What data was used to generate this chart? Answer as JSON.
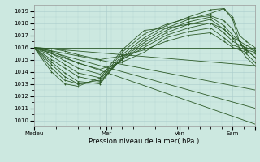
{
  "xlabel": "Pression niveau de la mer( hPa )",
  "bg_color": "#cce8e0",
  "grid_color": "#aacccc",
  "line_color": "#2d5a27",
  "xlim": [
    0,
    100
  ],
  "ylim": [
    1009.5,
    1019.5
  ],
  "yticks": [
    1010,
    1011,
    1012,
    1013,
    1014,
    1015,
    1016,
    1017,
    1018,
    1019
  ],
  "xtick_positions": [
    0,
    33,
    66,
    90,
    100
  ],
  "xtick_labels": [
    "Madeu",
    "Mer",
    "Ven",
    "Sam",
    ""
  ],
  "fan_lines": [
    {
      "x0": 0,
      "y0": 1016.0,
      "x1": 100,
      "y1": 1016.0
    },
    {
      "x0": 0,
      "y0": 1016.0,
      "x1": 100,
      "y1": 1014.5
    },
    {
      "x0": 0,
      "y0": 1016.0,
      "x1": 100,
      "y1": 1012.5
    },
    {
      "x0": 0,
      "y0": 1016.0,
      "x1": 100,
      "y1": 1011.0
    },
    {
      "x0": 0,
      "y0": 1016.0,
      "x1": 100,
      "y1": 1009.7
    }
  ],
  "curves": [
    {
      "x": [
        0,
        8,
        14,
        20,
        30,
        40,
        50,
        60,
        70,
        80,
        86,
        90,
        93,
        96,
        100
      ],
      "y": [
        1016.0,
        1015.9,
        1015.7,
        1015.4,
        1015.0,
        1015.3,
        1015.8,
        1016.5,
        1017.0,
        1017.2,
        1016.5,
        1016.0,
        1015.8,
        1015.6,
        1015.5
      ]
    },
    {
      "x": [
        0,
        8,
        14,
        20,
        30,
        40,
        50,
        60,
        70,
        80,
        86,
        90,
        93,
        96,
        100
      ],
      "y": [
        1016.0,
        1015.7,
        1015.2,
        1014.7,
        1014.2,
        1014.8,
        1015.6,
        1016.8,
        1017.3,
        1017.6,
        1016.8,
        1016.2,
        1016.0,
        1015.8,
        1015.6
      ]
    },
    {
      "x": [
        0,
        8,
        14,
        20,
        30,
        40,
        50,
        60,
        70,
        80,
        86,
        90,
        93,
        96,
        100
      ],
      "y": [
        1016.0,
        1015.5,
        1014.9,
        1014.3,
        1013.8,
        1015.0,
        1016.0,
        1017.0,
        1017.6,
        1018.0,
        1017.2,
        1016.5,
        1016.2,
        1016.0,
        1015.7
      ]
    },
    {
      "x": [
        0,
        8,
        14,
        20,
        30,
        40,
        50,
        60,
        70,
        80,
        86,
        90,
        93,
        96,
        100
      ],
      "y": [
        1016.0,
        1015.3,
        1014.6,
        1013.9,
        1013.5,
        1015.0,
        1016.2,
        1017.2,
        1017.9,
        1018.3,
        1017.5,
        1016.8,
        1016.5,
        1016.2,
        1015.8
      ]
    },
    {
      "x": [
        0,
        8,
        14,
        20,
        30,
        40,
        50,
        60,
        70,
        80,
        86,
        90,
        93,
        96,
        100
      ],
      "y": [
        1016.0,
        1015.0,
        1014.3,
        1013.6,
        1013.2,
        1015.1,
        1016.4,
        1017.4,
        1018.1,
        1018.5,
        1017.8,
        1017.0,
        1016.5,
        1015.8,
        1015.2
      ]
    },
    {
      "x": [
        0,
        8,
        14,
        20,
        30,
        40,
        50,
        60,
        70,
        80,
        86,
        90,
        93,
        96,
        100
      ],
      "y": [
        1016.0,
        1014.8,
        1013.9,
        1013.2,
        1013.0,
        1015.2,
        1016.6,
        1017.6,
        1018.3,
        1018.8,
        1019.2,
        1018.3,
        1016.5,
        1015.5,
        1014.8
      ]
    },
    {
      "x": [
        0,
        8,
        14,
        20,
        30,
        40,
        50,
        60,
        70,
        80,
        86,
        90,
        93,
        96,
        100
      ],
      "y": [
        1016.0,
        1014.6,
        1013.6,
        1013.0,
        1013.1,
        1015.4,
        1016.8,
        1017.8,
        1018.5,
        1019.1,
        1019.2,
        1018.5,
        1017.0,
        1016.5,
        1016.0
      ]
    },
    {
      "x": [
        0,
        8,
        14,
        20,
        30,
        40,
        50,
        60,
        70,
        80,
        86,
        90,
        93,
        96,
        100
      ],
      "y": [
        1016.0,
        1014.3,
        1013.3,
        1013.0,
        1013.3,
        1015.6,
        1017.1,
        1017.9,
        1018.4,
        1018.6,
        1018.2,
        1017.5,
        1016.5,
        1015.8,
        1015.2
      ]
    },
    {
      "x": [
        0,
        8,
        14,
        20,
        30,
        40,
        50,
        60,
        70,
        80,
        86,
        90,
        93,
        96,
        100
      ],
      "y": [
        1016.0,
        1014.0,
        1013.0,
        1012.8,
        1013.5,
        1015.8,
        1017.4,
        1017.6,
        1017.9,
        1018.0,
        1017.5,
        1016.8,
        1016.0,
        1015.2,
        1014.5
      ]
    }
  ]
}
